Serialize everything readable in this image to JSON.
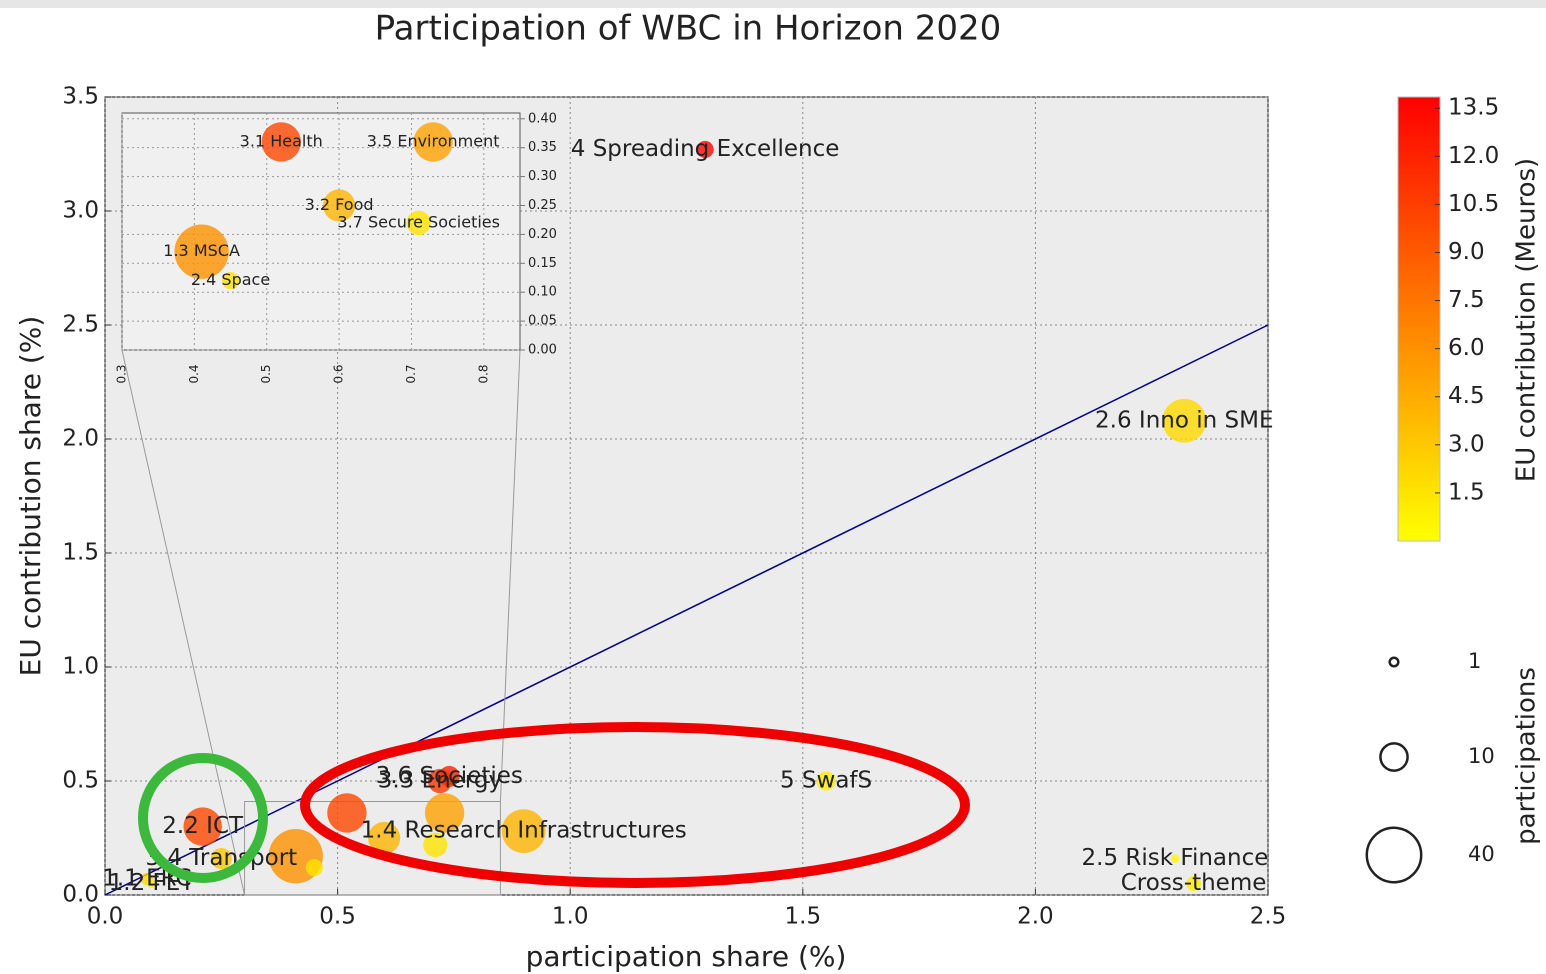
{
  "chart_data": {
    "type": "bubble",
    "title": "Participation of WBC in Horizon 2020",
    "xlabel": "participation share (%)",
    "ylabel": "EU contribution share (%)",
    "xlim": [
      0,
      2.5
    ],
    "ylim": [
      0,
      3.5
    ],
    "xticks": [
      {
        "value": 0,
        "label": "0.0"
      },
      0.5,
      {
        "value": 1,
        "label": "1.0"
      },
      1.5,
      {
        "value": 2,
        "label": "2.0"
      },
      2.5
    ],
    "yticks": [
      {
        "value": 0,
        "label": "0.0"
      },
      0.5,
      {
        "value": 1,
        "label": "1.0"
      },
      1.5,
      {
        "value": 2,
        "label": "2.0"
      },
      2.5,
      {
        "value": 3,
        "label": "3.0"
      },
      3.5
    ],
    "grid": true,
    "reference_line": {
      "x": [
        0,
        2.5
      ],
      "y": [
        0,
        2.5
      ],
      "color": "#00008b"
    },
    "colormap": [
      "#ffff00",
      "#ff0000"
    ],
    "colorbar_label": "EU contribution (Meuros)",
    "clim": [
      0,
      13.85
    ],
    "cticks": [
      1.5,
      {
        "value": 3,
        "label": "3.0"
      },
      4.5,
      {
        "value": 6,
        "label": "6.0"
      },
      7.5,
      {
        "value": 9,
        "label": "9.0"
      },
      10.5,
      {
        "value": 12,
        "label": "12.0"
      },
      13.5
    ],
    "size_label": "participations",
    "size_legend": [
      1,
      10,
      40
    ],
    "inset": {
      "xlim": [
        0.3,
        0.85
      ],
      "ylim": [
        0,
        0.41
      ],
      "xticks": [
        0.3,
        0.4,
        0.5,
        0.6,
        0.7,
        0.8
      ],
      "yticks": [
        {
          "value": 0,
          "label": "0.00"
        },
        0.05,
        {
          "value": 0.1,
          "label": "0.10"
        },
        0.15,
        {
          "value": 0.2,
          "label": "0.20"
        },
        0.25,
        {
          "value": 0.3,
          "label": "0.30"
        },
        0.35,
        {
          "value": 0.4,
          "label": "0.40"
        }
      ]
    },
    "points": [
      {
        "name": "4 Spreading Excellence",
        "x": 1.29,
        "y": 3.27,
        "size": 4,
        "contribution": 13.5
      },
      {
        "name": "2.6 Inno in SME",
        "x": 2.32,
        "y": 2.08,
        "size": 26,
        "contribution": 2
      },
      {
        "name": "5 SwafS",
        "x": 1.55,
        "y": 0.5,
        "size": 5,
        "contribution": 1
      },
      {
        "name": "2.5 Risk Finance",
        "x": 2.3,
        "y": 0.16,
        "size": 1,
        "contribution": 0.5
      },
      {
        "name": "Cross-theme",
        "x": 2.34,
        "y": 0.05,
        "size": 3,
        "contribution": 1
      },
      {
        "name": "3.6 Societies",
        "x": 0.74,
        "y": 0.52,
        "size": 6,
        "contribution": 12
      },
      {
        "name": "3.3 Energy",
        "x": 0.72,
        "y": 0.5,
        "size": 8,
        "contribution": 11
      },
      {
        "name": "1.4 Research Infrastructures",
        "x": 0.9,
        "y": 0.28,
        "size": 26,
        "contribution": 4
      },
      {
        "name": "2.2 ICT",
        "x": 0.21,
        "y": 0.3,
        "size": 20,
        "contribution": 10
      },
      {
        "name": "3.4 Transport",
        "x": 0.25,
        "y": 0.16,
        "size": 6,
        "contribution": 3
      },
      {
        "name": "1.1 ERC",
        "x": 0.09,
        "y": 0.07,
        "size": 2,
        "contribution": 2
      },
      {
        "name": "1.2 FET",
        "x": 0.1,
        "y": 0.05,
        "size": 1,
        "contribution": 1
      },
      {
        "name": "3.1 Health",
        "x": 0.52,
        "y": 0.36,
        "size": 21,
        "contribution": 10
      },
      {
        "name": "3.5 Environment",
        "x": 0.73,
        "y": 0.36,
        "size": 21,
        "contribution": 5
      },
      {
        "name": "3.2 Food",
        "x": 0.6,
        "y": 0.25,
        "size": 14,
        "contribution": 4
      },
      {
        "name": "3.7 Secure Societies",
        "x": 0.71,
        "y": 0.22,
        "size": 8,
        "contribution": 1.5
      },
      {
        "name": "1.3 MSCA",
        "x": 0.41,
        "y": 0.17,
        "size": 40,
        "contribution": 6
      },
      {
        "name": "2.4 Space",
        "x": 0.45,
        "y": 0.12,
        "size": 4,
        "contribution": 1.5
      }
    ]
  }
}
